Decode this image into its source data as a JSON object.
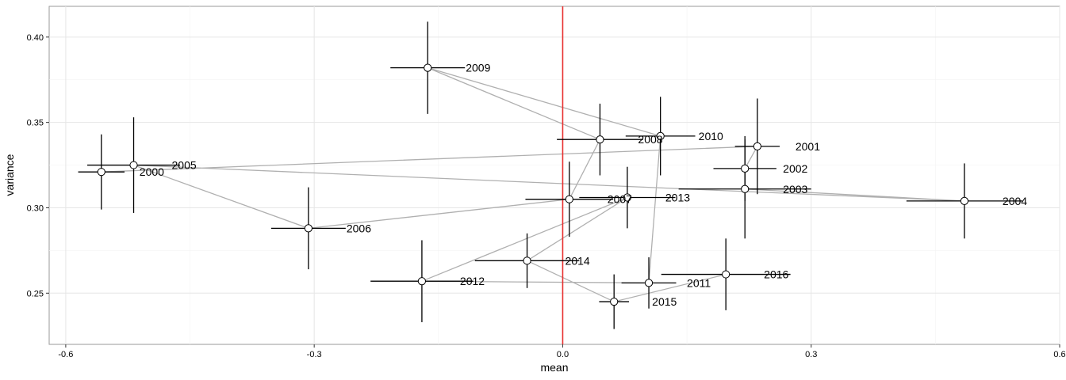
{
  "chart_data": {
    "type": "scatter",
    "title": "",
    "xlabel": "mean",
    "ylabel": "variance",
    "xlim": [
      -0.62,
      0.6
    ],
    "ylim": [
      0.22,
      0.418
    ],
    "x_ticks": [
      -0.6,
      -0.3,
      0.0,
      0.3,
      0.6
    ],
    "x_tick_labels": [
      "-0.6",
      "-0.3",
      "0.0",
      "0.3",
      "0.6"
    ],
    "y_ticks": [
      0.25,
      0.3,
      0.35,
      0.4
    ],
    "y_tick_labels": [
      "0.25",
      "0.30",
      "0.35",
      "0.40"
    ],
    "grid": true,
    "vline": {
      "x": 0.0,
      "color": "#e8302f"
    },
    "path_color": "#b0b0b0",
    "points": [
      {
        "label": "2000",
        "x": -0.557,
        "y": 0.321,
        "x_err": 0.028,
        "y_err": 0.022
      },
      {
        "label": "2001",
        "x": 0.235,
        "y": 0.336,
        "x_err": 0.027,
        "y_err": 0.028
      },
      {
        "label": "2002",
        "x": 0.22,
        "y": 0.323,
        "x_err": 0.038,
        "y_err": 0.019
      },
      {
        "label": "2003",
        "x": 0.22,
        "y": 0.311,
        "x_err": 0.08,
        "y_err": 0.029
      },
      {
        "label": "2004",
        "x": 0.485,
        "y": 0.304,
        "x_err": 0.07,
        "y_err": 0.022
      },
      {
        "label": "2005",
        "x": -0.518,
        "y": 0.325,
        "x_err": 0.056,
        "y_err": 0.028
      },
      {
        "label": "2006",
        "x": -0.307,
        "y": 0.288,
        "x_err": 0.045,
        "y_err": 0.024
      },
      {
        "label": "2007",
        "x": 0.008,
        "y": 0.305,
        "x_err": 0.053,
        "y_err": 0.022
      },
      {
        "label": "2008",
        "x": 0.045,
        "y": 0.34,
        "x_err": 0.052,
        "y_err": 0.021
      },
      {
        "label": "2009",
        "x": -0.163,
        "y": 0.382,
        "x_err": 0.045,
        "y_err": 0.027
      },
      {
        "label": "2010",
        "x": 0.118,
        "y": 0.342,
        "x_err": 0.042,
        "y_err": 0.023
      },
      {
        "label": "2011",
        "x": 0.104,
        "y": 0.256,
        "x_err": 0.033,
        "y_err": 0.015
      },
      {
        "label": "2012",
        "x": -0.17,
        "y": 0.257,
        "x_err": 0.062,
        "y_err": 0.024
      },
      {
        "label": "2013",
        "x": 0.078,
        "y": 0.306,
        "x_err": 0.058,
        "y_err": 0.018
      },
      {
        "label": "2014",
        "x": -0.043,
        "y": 0.269,
        "x_err": 0.063,
        "y_err": 0.016
      },
      {
        "label": "2015",
        "x": 0.062,
        "y": 0.245,
        "x_err": 0.018,
        "y_err": 0.016
      },
      {
        "label": "2016",
        "x": 0.197,
        "y": 0.261,
        "x_err": 0.078,
        "y_err": 0.021
      }
    ]
  }
}
